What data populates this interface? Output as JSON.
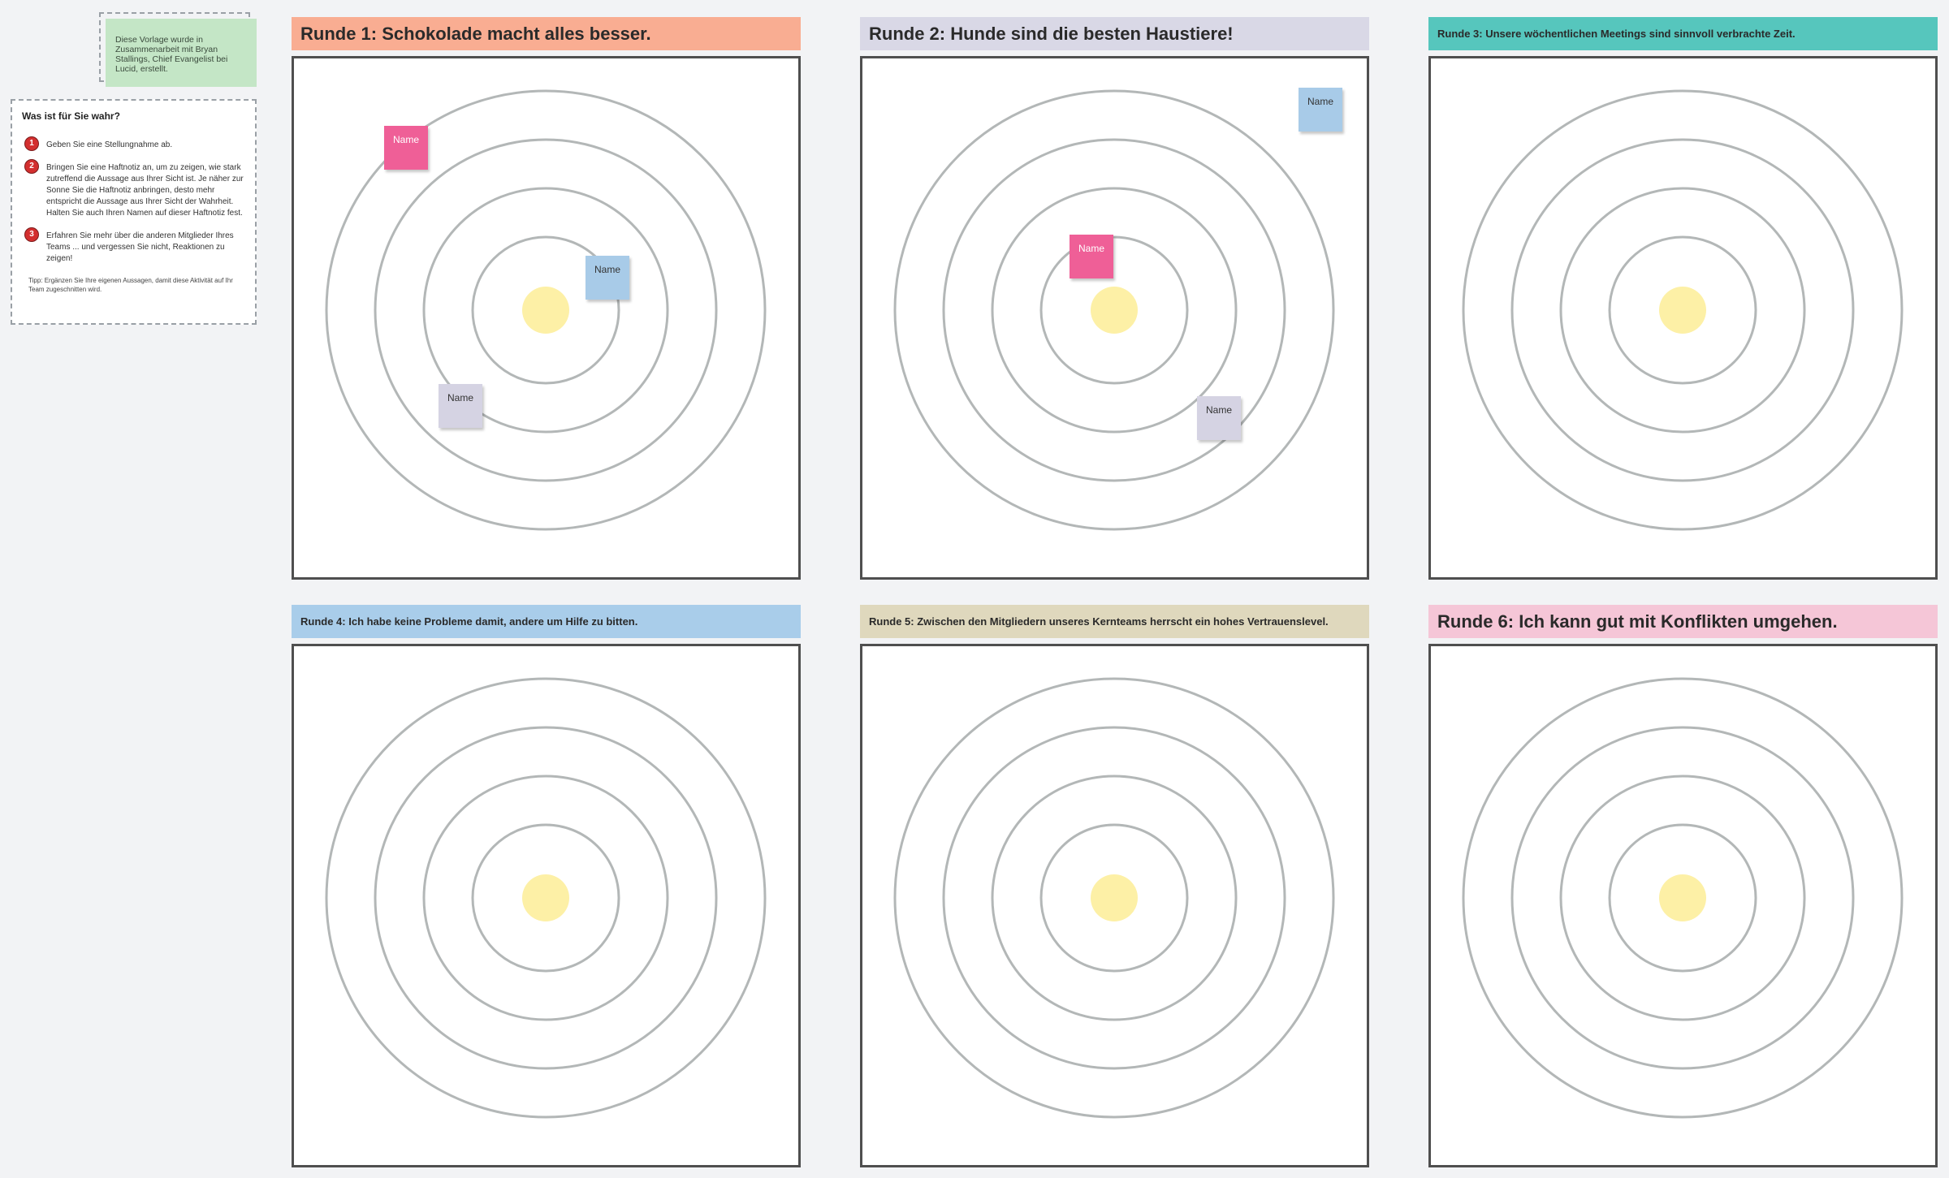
{
  "credit_note": "Diese Vorlage wurde in Zusammenarbeit mit Bryan Stallings, Chief Evangelist bei Lucid, erstellt.",
  "instructions": {
    "title": "Was ist für Sie wahr?",
    "steps": [
      {
        "num": "1",
        "text": "Geben Sie eine Stellungnahme ab."
      },
      {
        "num": "2",
        "text": "Bringen Sie eine Haftnotiz an, um zu zeigen, wie stark zutreffend die Aussage aus Ihrer Sicht ist. Je näher zur Sonne Sie die Haftnotiz anbringen, desto mehr entspricht die Aussage aus Ihrer Sicht der Wahrheit. Halten Sie auch Ihren Namen auf dieser Haftnotiz fest."
      },
      {
        "num": "3",
        "text": "Erfahren Sie mehr über die anderen Mitglieder Ihres Teams ... und vergessen Sie nicht, Reaktionen zu zeigen!"
      }
    ],
    "tip": "Tipp: Ergänzen Sie Ihre eigenen Aussagen, damit diese Aktivität auf Ihr Team zugeschnitten wird."
  },
  "colors": {
    "round1": "#f9ad92",
    "round2": "#d9d8e6",
    "round3": "#56c6bd",
    "round4": "#a9cdea",
    "round5": "#dfd8bd",
    "round6": "#f5c6d7",
    "ring": "#b3b7b7",
    "sun": "#fdf0a6"
  },
  "rounds": [
    {
      "title": "Runde 1: Schokolade macht alles besser.",
      "stickies": [
        {
          "label": "Name",
          "color": "pink"
        },
        {
          "label": "Name",
          "color": "blue"
        },
        {
          "label": "Name",
          "color": "lilac"
        }
      ]
    },
    {
      "title": "Runde 2: Hunde sind die besten Haustiere!",
      "stickies": [
        {
          "label": "Name",
          "color": "blue"
        },
        {
          "label": "Name",
          "color": "pink"
        },
        {
          "label": "Name",
          "color": "lilac"
        }
      ]
    },
    {
      "title": "Runde 3: Unsere wöchentlichen Meetings sind sinnvoll verbrachte Zeit.",
      "stickies": []
    },
    {
      "title": "Runde 4: Ich habe keine Probleme damit, andere um Hilfe zu bitten.",
      "stickies": []
    },
    {
      "title": "Runde 5: Zwischen den Mitgliedern unseres Kernteams herrscht ein hohes Vertrauenslevel.",
      "stickies": []
    },
    {
      "title": "Runde 6: Ich kann gut mit Konflikten umgehen.",
      "stickies": []
    }
  ]
}
